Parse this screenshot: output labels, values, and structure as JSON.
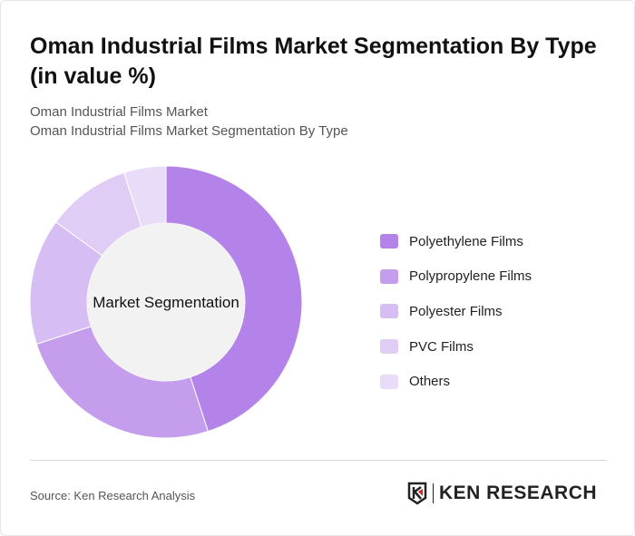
{
  "title": "Oman Industrial Films Market Segmentation By Type (in value %)",
  "subtitle_lines": [
    "Oman Industrial Films Market",
    "Oman Industrial Films Market Segmentation By Type"
  ],
  "source": "Source: Ken Research Analysis",
  "logo": {
    "text": "KEN RESEARCH"
  },
  "chart_data": {
    "type": "pie",
    "variant": "donut",
    "center_label": "Market Segmentation",
    "categories": [
      "Polyethylene Films",
      "Polypropylene Films",
      "Polyester Films",
      "PVC Films",
      "Others"
    ],
    "values": [
      45,
      25,
      15,
      10,
      5
    ],
    "colors": [
      "#b383ea",
      "#c49eed",
      "#d6bdf3",
      "#e0cdf6",
      "#e9dcf8"
    ],
    "legend_position": "right"
  }
}
